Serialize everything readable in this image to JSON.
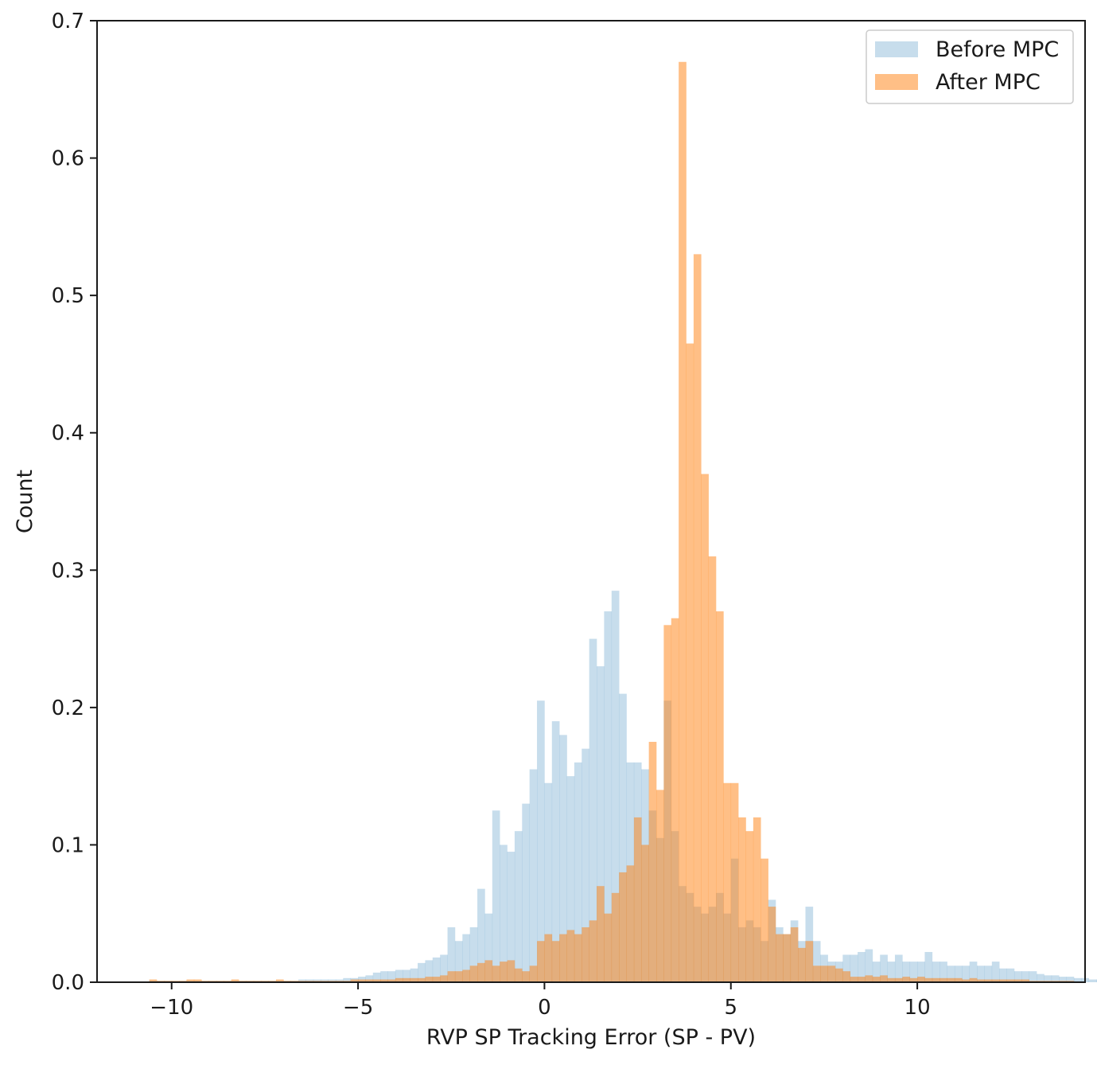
{
  "chart_data": {
    "type": "histogram",
    "xlabel": "RVP SP Tracking Error (SP - PV)",
    "ylabel": "Count",
    "xlim": [
      -12,
      14.5
    ],
    "ylim": [
      0,
      0.7
    ],
    "x_ticks": [
      -10,
      -5,
      0,
      5,
      10
    ],
    "x_tick_labels": [
      "−10",
      "−5",
      "0",
      "5",
      "10"
    ],
    "y_ticks": [
      0.0,
      0.1,
      0.2,
      0.3,
      0.4,
      0.5,
      0.6,
      0.7
    ],
    "y_tick_labels": [
      "0.0",
      "0.1",
      "0.2",
      "0.3",
      "0.4",
      "0.5",
      "0.6",
      "0.7"
    ],
    "legend_position": "top-right",
    "grid": false,
    "series": [
      {
        "name": "Before MPC",
        "color": "#1f77b4",
        "alpha": 0.25,
        "bin_start": -10.6,
        "bin_width": 0.2,
        "values": [
          0.001,
          0.001,
          0.001,
          0.001,
          0.001,
          0.001,
          0.001,
          0.001,
          0.001,
          0.001,
          0.001,
          0.001,
          0.001,
          0.001,
          0.001,
          0.001,
          0.001,
          0.001,
          0.001,
          0.001,
          0.002,
          0.002,
          0.002,
          0.002,
          0.002,
          0.002,
          0.003,
          0.003,
          0.004,
          0.005,
          0.007,
          0.008,
          0.008,
          0.009,
          0.009,
          0.01,
          0.014,
          0.016,
          0.018,
          0.02,
          0.04,
          0.03,
          0.035,
          0.04,
          0.068,
          0.05,
          0.125,
          0.1,
          0.095,
          0.11,
          0.13,
          0.155,
          0.205,
          0.145,
          0.19,
          0.18,
          0.15,
          0.16,
          0.17,
          0.25,
          0.23,
          0.27,
          0.285,
          0.21,
          0.16,
          0.16,
          0.155,
          0.125,
          0.105,
          0.205,
          0.11,
          0.07,
          0.065,
          0.055,
          0.05,
          0.055,
          0.065,
          0.05,
          0.09,
          0.04,
          0.045,
          0.04,
          0.03,
          0.06,
          0.04,
          0.035,
          0.045,
          0.03,
          0.055,
          0.03,
          0.02,
          0.015,
          0.015,
          0.02,
          0.02,
          0.022,
          0.024,
          0.015,
          0.02,
          0.015,
          0.02,
          0.015,
          0.015,
          0.015,
          0.022,
          0.015,
          0.015,
          0.012,
          0.012,
          0.012,
          0.015,
          0.012,
          0.012,
          0.015,
          0.01,
          0.01,
          0.008,
          0.008,
          0.008,
          0.006,
          0.005,
          0.005,
          0.004,
          0.004,
          0.003,
          0.003,
          0.002,
          0.002
        ]
      },
      {
        "name": "After MPC",
        "color": "#ff7f0e",
        "alpha": 0.5,
        "bin_start": -10.6,
        "bin_width": 0.2,
        "values": [
          0.002,
          0.001,
          0.001,
          0.001,
          0.001,
          0.002,
          0.002,
          0.001,
          0.001,
          0.001,
          0.001,
          0.002,
          0.001,
          0.001,
          0.001,
          0.001,
          0.001,
          0.002,
          0.001,
          0.001,
          0.001,
          0.001,
          0.001,
          0.001,
          0.001,
          0.001,
          0.001,
          0.002,
          0.002,
          0.002,
          0.002,
          0.002,
          0.002,
          0.003,
          0.003,
          0.003,
          0.003,
          0.004,
          0.004,
          0.005,
          0.008,
          0.008,
          0.009,
          0.012,
          0.014,
          0.016,
          0.012,
          0.015,
          0.016,
          0.01,
          0.008,
          0.012,
          0.03,
          0.035,
          0.03,
          0.035,
          0.038,
          0.035,
          0.04,
          0.045,
          0.07,
          0.05,
          0.065,
          0.08,
          0.085,
          0.12,
          0.1,
          0.175,
          0.14,
          0.26,
          0.265,
          0.67,
          0.465,
          0.53,
          0.37,
          0.31,
          0.27,
          0.145,
          0.145,
          0.12,
          0.11,
          0.12,
          0.09,
          0.055,
          0.035,
          0.035,
          0.04,
          0.025,
          0.03,
          0.012,
          0.012,
          0.012,
          0.01,
          0.008,
          0.004,
          0.004,
          0.005,
          0.004,
          0.005,
          0.003,
          0.003,
          0.004,
          0.003,
          0.004,
          0.003,
          0.003,
          0.003,
          0.003,
          0.003,
          0.002,
          0.003,
          0.002,
          0.002,
          0.002,
          0.002,
          0.002,
          0.002,
          0.002,
          0.001,
          0.001,
          0.001,
          0.001,
          0.001,
          0.001
        ]
      }
    ]
  }
}
